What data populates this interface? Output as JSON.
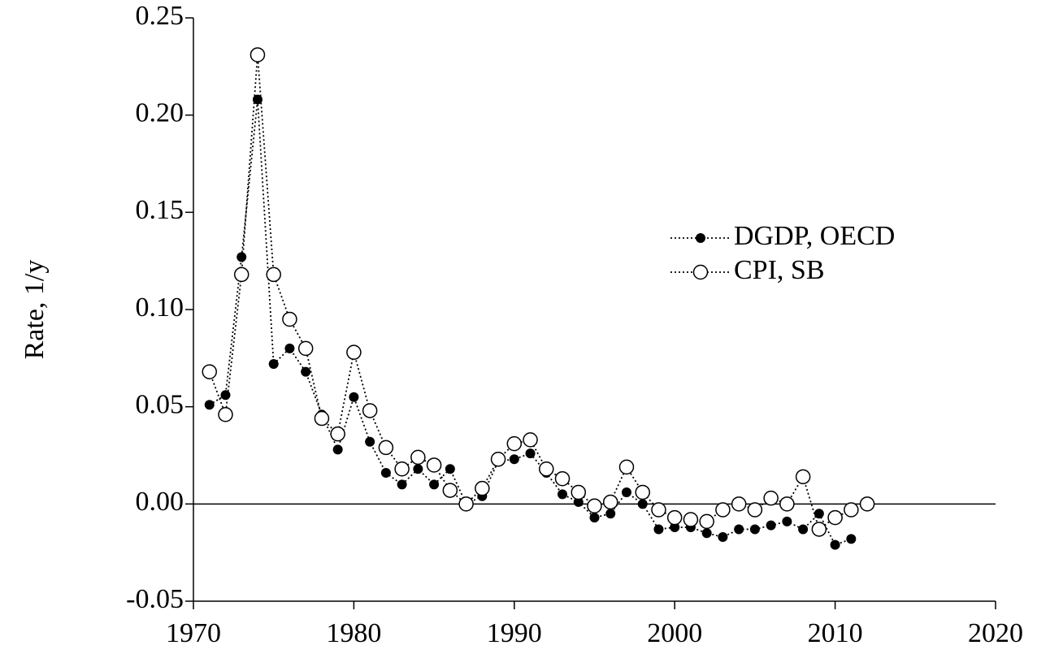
{
  "chart_data": {
    "type": "line",
    "y_label": "Rate, 1/y",
    "xlim": [
      1970,
      2020
    ],
    "xticks": [
      1970,
      1980,
      1990,
      2000,
      2010,
      2020
    ],
    "ylim": [
      -0.05,
      0.25
    ],
    "yticks": [
      -0.05,
      {
        "value": 0,
        "label": "0.00"
      },
      0.05,
      {
        "value": 0.1,
        "label": "0.10"
      },
      0.15,
      {
        "value": 0.2,
        "label": "0.20"
      },
      0.25
    ],
    "grid": false,
    "legend": "right",
    "series": [
      {
        "name": "DGDP, OECD",
        "color": "#000000",
        "marker": "filled",
        "x": [
          1971,
          1972,
          1973,
          1974,
          1975,
          1976,
          1977,
          1978,
          1979,
          1980,
          1981,
          1982,
          1983,
          1984,
          1985,
          1986,
          1987,
          1988,
          1989,
          1990,
          1991,
          1992,
          1993,
          1994,
          1995,
          1996,
          1997,
          1998,
          1999,
          2000,
          2001,
          2002,
          2003,
          2004,
          2005,
          2006,
          2007,
          2008,
          2009,
          2010,
          2011
        ],
        "values": [
          0.051,
          0.056,
          0.127,
          0.208,
          0.072,
          0.08,
          0.068,
          0.046,
          0.028,
          0.055,
          0.032,
          0.016,
          0.01,
          0.018,
          0.01,
          0.018,
          0.0,
          0.004,
          0.022,
          0.023,
          0.026,
          0.016,
          0.005,
          0.001,
          -0.007,
          -0.005,
          0.006,
          0.0,
          -0.013,
          -0.012,
          -0.012,
          -0.015,
          -0.017,
          -0.013,
          -0.013,
          -0.011,
          -0.009,
          -0.013,
          -0.005,
          -0.021,
          -0.018
        ]
      },
      {
        "name": "CPI, SB",
        "color": "#000000",
        "marker": "open",
        "x": [
          1971,
          1972,
          1973,
          1974,
          1975,
          1976,
          1977,
          1978,
          1979,
          1980,
          1981,
          1982,
          1983,
          1984,
          1985,
          1986,
          1987,
          1988,
          1989,
          1990,
          1991,
          1992,
          1993,
          1994,
          1995,
          1996,
          1997,
          1998,
          1999,
          2000,
          2001,
          2002,
          2003,
          2004,
          2005,
          2006,
          2007,
          2008,
          2009,
          2010,
          2011,
          2012
        ],
        "values": [
          0.068,
          0.046,
          0.118,
          0.231,
          0.118,
          0.095,
          0.08,
          0.044,
          0.036,
          0.078,
          0.048,
          0.029,
          0.018,
          0.024,
          0.02,
          0.007,
          0.0,
          0.008,
          0.023,
          0.031,
          0.033,
          0.018,
          0.013,
          0.006,
          -0.001,
          0.001,
          0.019,
          0.006,
          -0.003,
          -0.007,
          -0.008,
          -0.009,
          -0.003,
          0.0,
          -0.003,
          0.003,
          0.0,
          0.014,
          -0.013,
          -0.007,
          -0.003,
          0.0
        ]
      }
    ]
  }
}
